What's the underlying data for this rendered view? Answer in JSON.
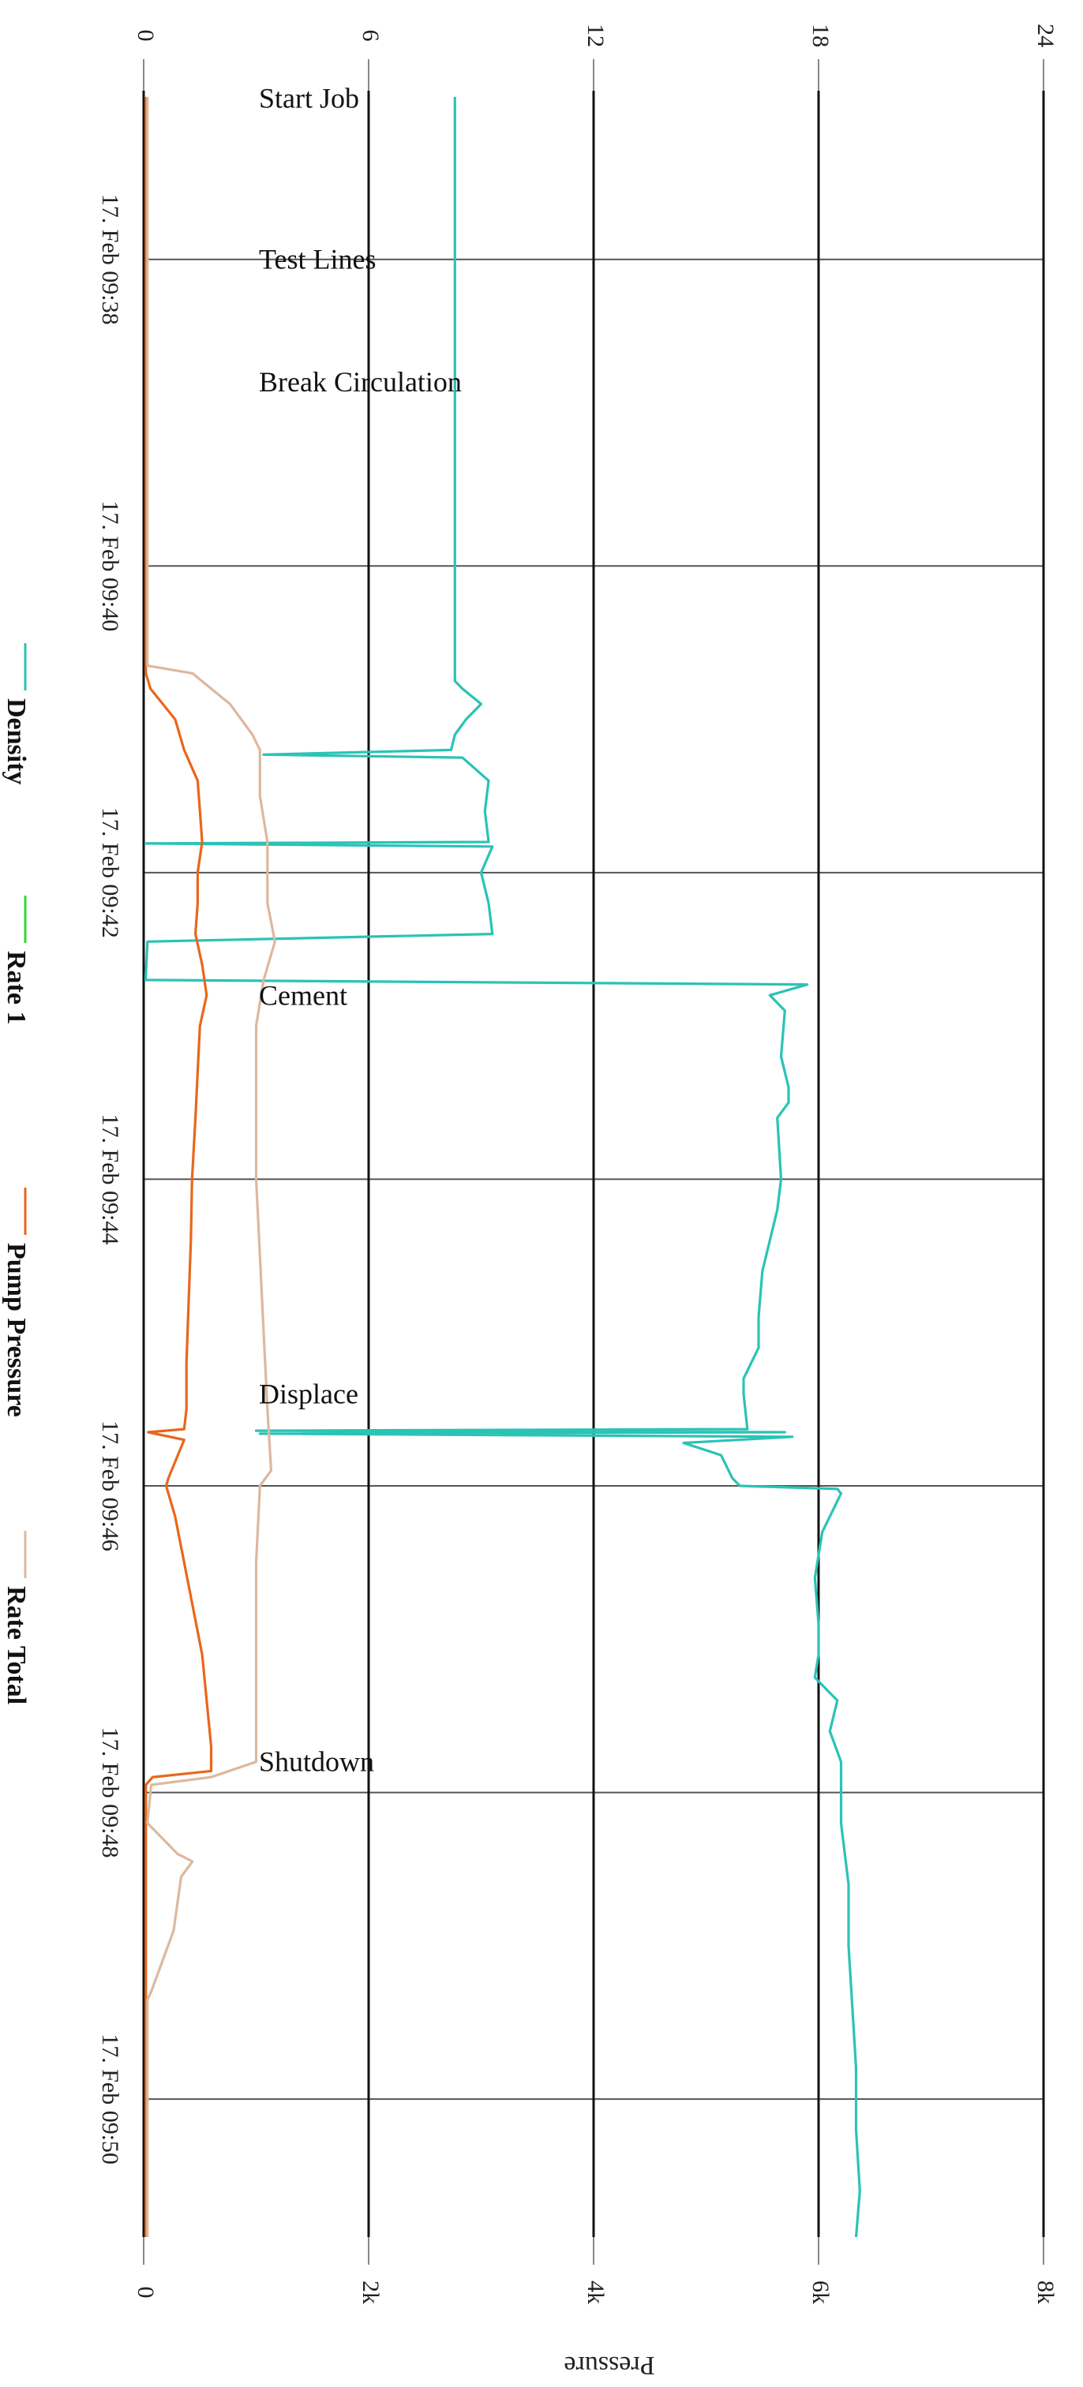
{
  "chart_data": {
    "type": "line",
    "orientation": "rotated-90-clockwise",
    "grid": true,
    "x_axis": {
      "ticks": [
        "17. Feb 09:38",
        "17. Feb 09:40",
        "17. Feb 09:42",
        "17. Feb 09:44",
        "17. Feb 09:46",
        "17. Feb 09:48",
        "17. Feb 09:50"
      ],
      "tick_minutes": [
        38,
        40,
        42,
        44,
        46,
        48,
        50
      ],
      "range_minutes": [
        36.9,
        50.9
      ]
    },
    "left_axis": {
      "title": "",
      "range": [
        0,
        24
      ],
      "ticks": [
        "0",
        "6",
        "12",
        "18",
        "24"
      ],
      "tick_values": [
        0,
        6,
        12,
        18,
        24
      ]
    },
    "right_axis": {
      "title": "Pressure",
      "range": [
        0,
        8000
      ],
      "ticks": [
        "0",
        "2k",
        "4k",
        "6k",
        "8k"
      ],
      "tick_values": [
        0,
        2000,
        4000,
        6000,
        8000
      ]
    },
    "legend": {
      "placement": "left",
      "entries": [
        {
          "name": "Density",
          "color": "#2ac3b6"
        },
        {
          "name": "Rate 1",
          "color": "#33d633"
        },
        {
          "name": "Pump Pressure",
          "color": "#e8671c"
        },
        {
          "name": "Rate Total",
          "color": "#ddb89e"
        }
      ]
    },
    "events": [
      {
        "label": "Start Job",
        "minute": 36.95
      },
      {
        "label": "Test Lines",
        "minute": 38.0
      },
      {
        "label": "Break Circulation",
        "minute": 38.8
      },
      {
        "label": "Cement",
        "minute": 42.8
      },
      {
        "label": "Displace",
        "minute": 45.4
      },
      {
        "label": "Shutdown",
        "minute": 47.8
      }
    ],
    "series": [
      {
        "name": "Density",
        "color": "#2ac3b6",
        "axis": "left",
        "points": [
          [
            36.94,
            8.3
          ],
          [
            40.75,
            8.3
          ],
          [
            40.8,
            8.5
          ],
          [
            40.9,
            9.0
          ],
          [
            41.0,
            8.6
          ],
          [
            41.1,
            8.3
          ],
          [
            41.2,
            8.2
          ],
          [
            41.23,
            3.2
          ],
          [
            41.25,
            8.5
          ],
          [
            41.4,
            9.2
          ],
          [
            41.6,
            9.1
          ],
          [
            41.8,
            9.2
          ],
          [
            41.81,
            0.05
          ],
          [
            41.83,
            9.3
          ],
          [
            42.0,
            9.0
          ],
          [
            42.2,
            9.2
          ],
          [
            42.4,
            9.3
          ],
          [
            42.45,
            0.1
          ],
          [
            42.7,
            0.05
          ],
          [
            42.73,
            17.7
          ],
          [
            42.8,
            16.7
          ],
          [
            42.9,
            17.1
          ],
          [
            43.2,
            17.0
          ],
          [
            43.4,
            17.2
          ],
          [
            43.5,
            17.2
          ],
          [
            43.6,
            16.9
          ],
          [
            44.0,
            17.0
          ],
          [
            44.2,
            16.9
          ],
          [
            44.6,
            16.5
          ],
          [
            44.9,
            16.4
          ],
          [
            45.1,
            16.4
          ],
          [
            45.3,
            16.0
          ],
          [
            45.4,
            16.0
          ],
          [
            45.63,
            16.1
          ],
          [
            45.64,
            3.0
          ],
          [
            45.65,
            17.1
          ],
          [
            45.66,
            3.1
          ],
          [
            45.68,
            17.3
          ],
          [
            45.72,
            14.4
          ],
          [
            45.8,
            15.4
          ],
          [
            45.95,
            15.7
          ],
          [
            46.0,
            15.9
          ],
          [
            46.02,
            18.5
          ],
          [
            46.05,
            18.6
          ],
          [
            46.3,
            18.1
          ],
          [
            46.6,
            17.9
          ],
          [
            46.9,
            18.0
          ],
          [
            47.1,
            18.0
          ],
          [
            47.25,
            17.9
          ],
          [
            47.4,
            18.5
          ],
          [
            47.6,
            18.3
          ],
          [
            47.8,
            18.6
          ],
          [
            48.2,
            18.6
          ],
          [
            48.6,
            18.8
          ],
          [
            49.0,
            18.8
          ],
          [
            49.4,
            18.9
          ],
          [
            49.8,
            19.0
          ],
          [
            50.2,
            19.0
          ],
          [
            50.6,
            19.1
          ],
          [
            50.9,
            19.0
          ]
        ]
      },
      {
        "name": "Rate 1",
        "color": "#33d633",
        "axis": "left",
        "points": []
      },
      {
        "name": "Pump Pressure",
        "color": "#e8671c",
        "axis": "right",
        "points": [
          [
            36.94,
            20
          ],
          [
            40.7,
            20
          ],
          [
            40.8,
            60
          ],
          [
            41.0,
            280
          ],
          [
            41.2,
            360
          ],
          [
            41.4,
            480
          ],
          [
            41.6,
            500
          ],
          [
            41.8,
            520
          ],
          [
            42.0,
            480
          ],
          [
            42.2,
            480
          ],
          [
            42.4,
            460
          ],
          [
            42.6,
            520
          ],
          [
            42.8,
            560
          ],
          [
            43.0,
            500
          ],
          [
            43.3,
            480
          ],
          [
            43.6,
            460
          ],
          [
            44.0,
            430
          ],
          [
            44.4,
            420
          ],
          [
            44.8,
            400
          ],
          [
            45.2,
            380
          ],
          [
            45.5,
            380
          ],
          [
            45.63,
            360
          ],
          [
            45.65,
            40
          ],
          [
            45.7,
            360
          ],
          [
            45.95,
            220
          ],
          [
            46.0,
            200
          ],
          [
            46.2,
            280
          ],
          [
            46.5,
            360
          ],
          [
            46.8,
            440
          ],
          [
            47.1,
            520
          ],
          [
            47.4,
            560
          ],
          [
            47.7,
            600
          ],
          [
            47.86,
            600
          ],
          [
            47.9,
            80
          ],
          [
            47.95,
            20
          ],
          [
            48.3,
            20
          ],
          [
            49.0,
            20
          ],
          [
            50.0,
            20
          ],
          [
            50.9,
            20
          ]
        ]
      },
      {
        "name": "Rate Total",
        "color": "#ddb89e",
        "axis": "left",
        "points": [
          [
            36.94,
            0.1
          ],
          [
            40.65,
            0.1
          ],
          [
            40.7,
            1.3
          ],
          [
            40.9,
            2.3
          ],
          [
            41.1,
            2.9
          ],
          [
            41.2,
            3.1
          ],
          [
            41.5,
            3.1
          ],
          [
            41.8,
            3.3
          ],
          [
            42.2,
            3.3
          ],
          [
            42.45,
            3.5
          ],
          [
            42.7,
            3.2
          ],
          [
            43.0,
            3.0
          ],
          [
            43.5,
            3.0
          ],
          [
            44.0,
            3.0
          ],
          [
            44.5,
            3.1
          ],
          [
            45.0,
            3.2
          ],
          [
            45.5,
            3.3
          ],
          [
            45.9,
            3.4
          ],
          [
            46.0,
            3.1
          ],
          [
            46.5,
            3.0
          ],
          [
            47.0,
            3.0
          ],
          [
            47.5,
            3.0
          ],
          [
            47.8,
            3.0
          ],
          [
            47.9,
            1.8
          ],
          [
            47.95,
            0.2
          ],
          [
            48.2,
            0.1
          ],
          [
            48.4,
            0.9
          ],
          [
            48.45,
            1.3
          ],
          [
            48.55,
            1.0
          ],
          [
            48.9,
            0.8
          ],
          [
            49.3,
            0.2
          ],
          [
            49.35,
            0.1
          ],
          [
            50.9,
            0.1
          ]
        ]
      }
    ]
  }
}
